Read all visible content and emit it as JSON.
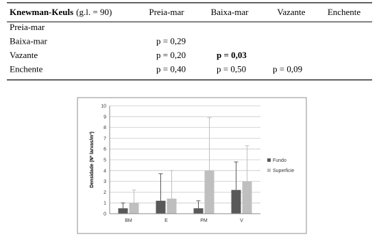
{
  "table": {
    "corner_bold": "Knewman-Keuls",
    "corner_note": "(g.l. = 90)",
    "columns": [
      "Preia-mar",
      "Baixa-mar",
      "Vazante",
      "Enchente"
    ],
    "rows": [
      {
        "label": "Preia-mar",
        "cells": [
          null,
          null,
          null,
          null
        ]
      },
      {
        "label": "Baixa-mar",
        "cells": [
          {
            "text": "p = 0,29",
            "bold": false
          },
          null,
          null,
          null
        ]
      },
      {
        "label": "Vazante",
        "cells": [
          {
            "text": "p = 0,20",
            "bold": false
          },
          {
            "text": "p = 0,03",
            "bold": true
          },
          null,
          null
        ]
      },
      {
        "label": "Enchente",
        "cells": [
          {
            "text": "p = 0,40",
            "bold": false
          },
          {
            "text": "p = 0,50",
            "bold": false
          },
          {
            "text": "p = 0,09",
            "bold": false
          },
          null
        ]
      }
    ]
  },
  "chart_data": {
    "type": "bar",
    "y_label": "Densidade (Nº larvas/m³)",
    "categories": [
      "BM",
      "E",
      "PM",
      "V"
    ],
    "series": [
      {
        "name": "Fundo",
        "color": "#595959",
        "values": [
          0.5,
          1.2,
          0.5,
          2.2
        ],
        "errors": [
          0.5,
          2.5,
          0.7,
          2.6
        ]
      },
      {
        "name": "Superficie",
        "color": "#bfbfbf",
        "values": [
          1.0,
          1.4,
          4.0,
          3.0
        ],
        "errors": [
          1.2,
          2.6,
          4.9,
          3.3
        ]
      }
    ],
    "ylim": [
      0,
      10
    ],
    "yticks": [
      0,
      1,
      2,
      3,
      4,
      5,
      6,
      7,
      8,
      9,
      10
    ],
    "grid": true,
    "legend": "right"
  }
}
